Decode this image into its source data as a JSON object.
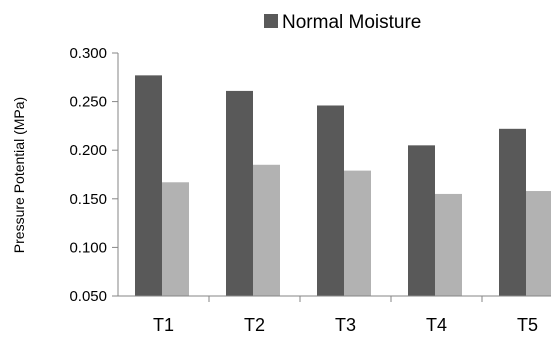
{
  "chart_data": {
    "type": "bar",
    "title": "",
    "xlabel": "",
    "ylabel": "Pressure Potential (MPa)",
    "categories": [
      "T1",
      "T2",
      "T3",
      "T4",
      "T5"
    ],
    "ylim": [
      0.05,
      0.3
    ],
    "yticks": [
      "0.300",
      "0.250",
      "0.200",
      "0.150",
      "0.100",
      "0.050"
    ],
    "grid": false,
    "legend": {
      "position": "top-right",
      "entries": [
        "Normal Moisture"
      ]
    },
    "series": [
      {
        "name": "Normal Moisture",
        "color": "#595959",
        "values": [
          0.277,
          0.261,
          0.246,
          0.205,
          0.222
        ]
      },
      {
        "color": "#b2b2b2",
        "values": [
          0.167,
          0.185,
          0.179,
          0.155,
          0.158
        ]
      }
    ]
  }
}
